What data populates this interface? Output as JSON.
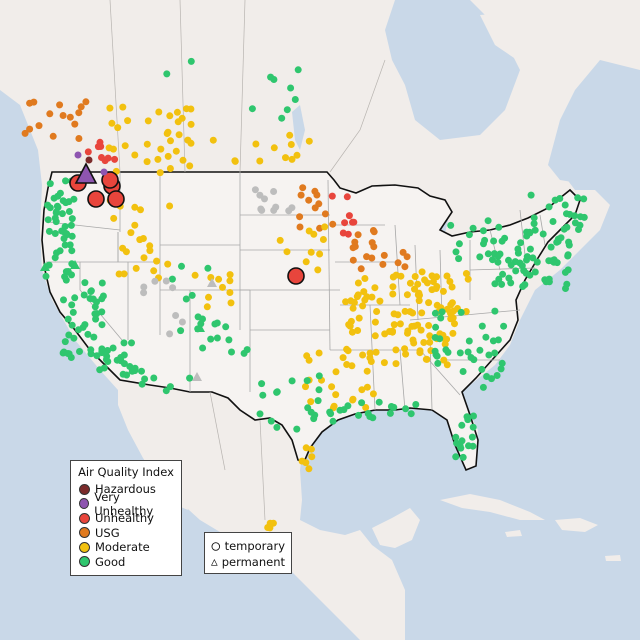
{
  "map": {
    "colors": {
      "water": "#c9d8e8",
      "land": "#f1edea",
      "us_land": "#f6f3f1",
      "state_border": "#a8a8a8",
      "country_border": "#111111"
    }
  },
  "legend": {
    "title": "Air Quality Index",
    "categories": [
      {
        "label": "Hazardous",
        "color": "#7b2b2b"
      },
      {
        "label": "Very Unhealthy",
        "color": "#8e55b0"
      },
      {
        "label": "Unhealthy",
        "color": "#e8453c"
      },
      {
        "label": "USG",
        "color": "#e07a1f"
      },
      {
        "label": "Moderate",
        "color": "#f2c10f"
      },
      {
        "label": "Good",
        "color": "#2fc66e"
      }
    ]
  },
  "monitor_legend": {
    "items": [
      {
        "label": "temporary",
        "icon": "circle-icon"
      },
      {
        "label": "permanent",
        "icon": "triangle-icon"
      }
    ]
  },
  "no_data_color": "#bdbdbd"
}
